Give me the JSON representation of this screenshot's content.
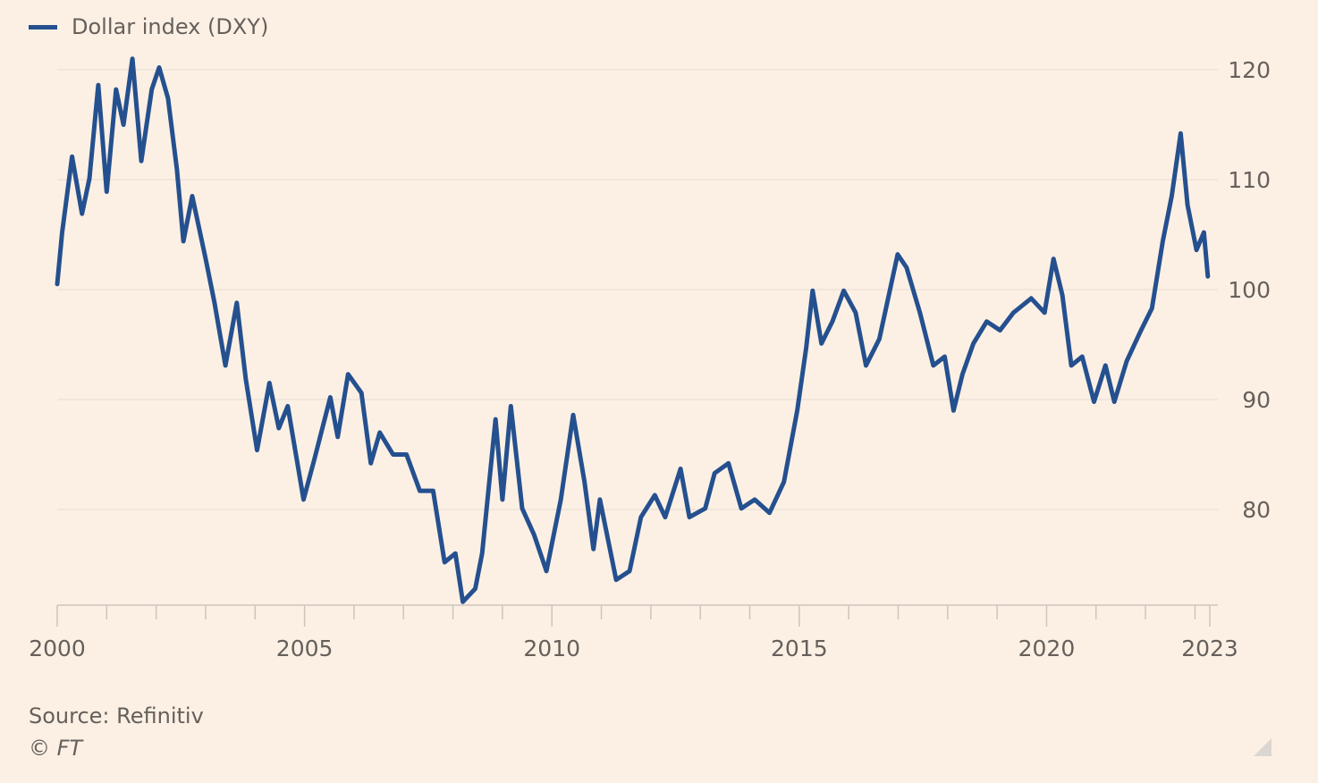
{
  "chart_data": {
    "type": "line",
    "title": "",
    "xlabel": "",
    "ylabel": "",
    "legend_position": "top-left",
    "grid": true,
    "xlim": [
      2000,
      2023.3
    ],
    "ylim": [
      71.3,
      120
    ],
    "y_ticks": [
      80,
      90,
      100,
      110,
      120
    ],
    "y_tick_labels": [
      "80",
      "90",
      "100",
      "110",
      "120"
    ],
    "x_major_ticks": [
      2000,
      2005,
      2010,
      2015,
      2020,
      2023.3
    ],
    "x_tick_labels": [
      "2000",
      "2005",
      "2010",
      "2015",
      "2020",
      "2023"
    ],
    "x_minor_ticks": [
      2001,
      2002,
      2003,
      2004,
      2006,
      2007,
      2008,
      2009,
      2011,
      2012,
      2013,
      2014,
      2016,
      2017,
      2018,
      2019,
      2021,
      2022,
      2023
    ],
    "series": [
      {
        "name": "Dollar index (DXY)",
        "color": "#25508f",
        "x": [
          2000.0,
          2000.1,
          2000.3,
          2000.5,
          2000.65,
          2000.83,
          2001.0,
          2001.19,
          2001.34,
          2001.52,
          2001.7,
          2001.91,
          2002.06,
          2002.24,
          2002.42,
          2002.55,
          2002.73,
          2003.0,
          2003.18,
          2003.4,
          2003.63,
          2003.81,
          2004.04,
          2004.29,
          2004.48,
          2004.66,
          2004.98,
          2005.2,
          2005.52,
          2005.67,
          2005.88,
          2006.15,
          2006.34,
          2006.52,
          2006.79,
          2007.06,
          2007.33,
          2007.6,
          2007.83,
          2008.05,
          2008.2,
          2008.45,
          2008.59,
          2008.86,
          2009.0,
          2009.17,
          2009.4,
          2009.64,
          2009.89,
          2010.18,
          2010.43,
          2010.66,
          2010.84,
          2010.97,
          2011.3,
          2011.57,
          2011.8,
          2012.08,
          2012.29,
          2012.6,
          2012.78,
          2013.1,
          2013.29,
          2013.57,
          2013.83,
          2014.1,
          2014.4,
          2014.69,
          2014.96,
          2015.14,
          2015.27,
          2015.45,
          2015.67,
          2015.9,
          2016.14,
          2016.35,
          2016.62,
          2016.99,
          2017.17,
          2017.44,
          2017.71,
          2017.94,
          2018.12,
          2018.3,
          2018.52,
          2018.79,
          2019.06,
          2019.33,
          2019.69,
          2019.96,
          2020.14,
          2020.32,
          2020.5,
          2020.72,
          2020.96,
          2021.19,
          2021.37,
          2021.62,
          2021.91,
          2022.13,
          2022.35,
          2022.53,
          2022.71,
          2022.85,
          2023.03,
          2023.18,
          2023.26
        ],
        "values": [
          100.5,
          105.2,
          112.1,
          106.9,
          110.1,
          118.6,
          108.9,
          118.2,
          115,
          121,
          111.7,
          118.2,
          120.2,
          117.4,
          110.9,
          104.4,
          108.5,
          102.8,
          98.8,
          93.1,
          98.8,
          91.9,
          85.4,
          91.5,
          87.4,
          89.4,
          80.9,
          84.6,
          90.2,
          86.6,
          92.3,
          90.6,
          84.2,
          87,
          85,
          85,
          81.7,
          81.7,
          75.2,
          76,
          71.6,
          72.8,
          76,
          88.2,
          80.9,
          89.4,
          80.1,
          77.7,
          74.4,
          80.9,
          88.6,
          82.5,
          76.4,
          80.9,
          73.6,
          74.4,
          79.3,
          81.3,
          79.3,
          83.7,
          79.3,
          80.1,
          83.3,
          84.2,
          80.1,
          80.9,
          79.7,
          82.5,
          89,
          94.7,
          99.9,
          95.1,
          97.1,
          99.9,
          97.9,
          93.1,
          95.5,
          103.2,
          102,
          97.9,
          93.1,
          93.9,
          89,
          92.3,
          95.1,
          97.1,
          96.3,
          97.9,
          99.2,
          97.9,
          102.8,
          99.5,
          93.1,
          93.9,
          89.8,
          93.1,
          89.8,
          93.5,
          96.3,
          98.3,
          104.4,
          108.5,
          114.2,
          107.7,
          103.6,
          105.2,
          101.2
        ]
      }
    ],
    "source": "Source: Refinitiv",
    "copyright": "© FT"
  }
}
